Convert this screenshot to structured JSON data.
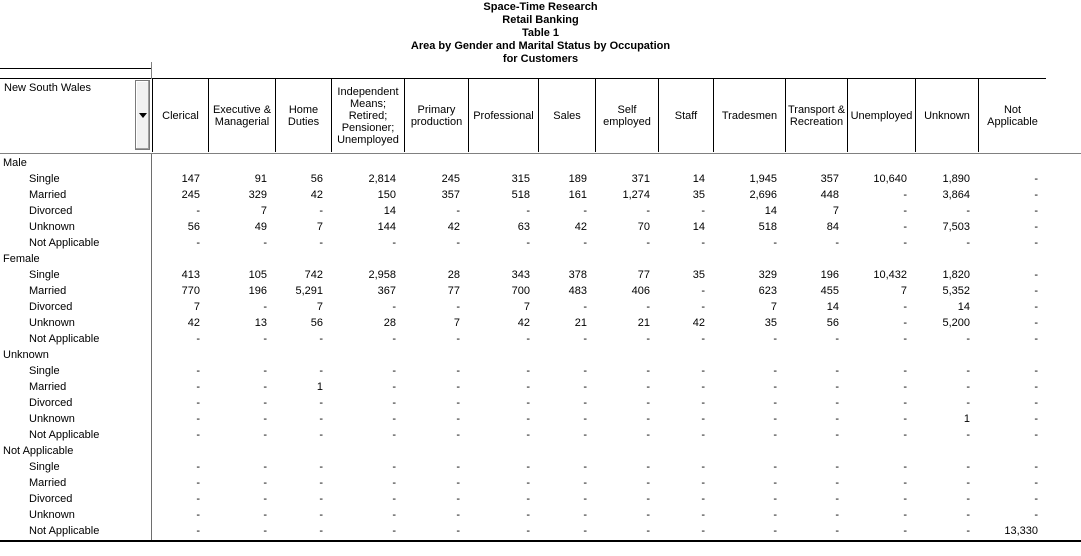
{
  "title_lines": [
    "Space-Time Research",
    "Retail Banking",
    "Table 1",
    "Area by Gender and Marital Status by Occupation",
    "for Customers"
  ],
  "table": {
    "area_selector": {
      "label": "New South Wales",
      "dropdown_icon": "down-triangle-icon"
    },
    "columns": [
      "Clerical",
      "Executive & Managerial",
      "Home Duties",
      "Independent Means; Retired; Pensioner; Unemployed",
      "Primary production",
      "Professional",
      "Sales",
      "Self employed",
      "Staff",
      "Tradesmen",
      "Transport & Recreation",
      "Unemployed",
      "Unknown",
      "Not Applicable"
    ],
    "groups": [
      {
        "label": "Male",
        "rows": [
          {
            "label": "Single",
            "values": [
              "147",
              "91",
              "56",
              "2,814",
              "245",
              "315",
              "189",
              "371",
              "14",
              "1,945",
              "357",
              "10,640",
              "1,890",
              "-"
            ]
          },
          {
            "label": "Married",
            "values": [
              "245",
              "329",
              "42",
              "150",
              "357",
              "518",
              "161",
              "1,274",
              "35",
              "2,696",
              "448",
              "-",
              "3,864",
              "-"
            ]
          },
          {
            "label": "Divorced",
            "values": [
              "-",
              "7",
              "-",
              "14",
              "-",
              "-",
              "-",
              "-",
              "-",
              "14",
              "7",
              "-",
              "-",
              "-"
            ]
          },
          {
            "label": "Unknown",
            "values": [
              "56",
              "49",
              "7",
              "144",
              "42",
              "63",
              "42",
              "70",
              "14",
              "518",
              "84",
              "-",
              "7,503",
              "-"
            ]
          },
          {
            "label": "Not Applicable",
            "values": [
              "-",
              "-",
              "-",
              "-",
              "-",
              "-",
              "-",
              "-",
              "-",
              "-",
              "-",
              "-",
              "-",
              "-"
            ]
          }
        ]
      },
      {
        "label": "Female",
        "rows": [
          {
            "label": "Single",
            "values": [
              "413",
              "105",
              "742",
              "2,958",
              "28",
              "343",
              "378",
              "77",
              "35",
              "329",
              "196",
              "10,432",
              "1,820",
              "-"
            ]
          },
          {
            "label": "Married",
            "values": [
              "770",
              "196",
              "5,291",
              "367",
              "77",
              "700",
              "483",
              "406",
              "-",
              "623",
              "455",
              "7",
              "5,352",
              "-"
            ]
          },
          {
            "label": "Divorced",
            "values": [
              "7",
              "-",
              "7",
              "-",
              "-",
              "7",
              "-",
              "-",
              "-",
              "7",
              "14",
              "-",
              "14",
              "-"
            ]
          },
          {
            "label": "Unknown",
            "values": [
              "42",
              "13",
              "56",
              "28",
              "7",
              "42",
              "21",
              "21",
              "42",
              "35",
              "56",
              "-",
              "5,200",
              "-"
            ]
          },
          {
            "label": "Not Applicable",
            "values": [
              "-",
              "-",
              "-",
              "-",
              "-",
              "-",
              "-",
              "-",
              "-",
              "-",
              "-",
              "-",
              "-",
              "-"
            ]
          }
        ]
      },
      {
        "label": "Unknown",
        "rows": [
          {
            "label": "Single",
            "values": [
              "-",
              "-",
              "-",
              "-",
              "-",
              "-",
              "-",
              "-",
              "-",
              "-",
              "-",
              "-",
              "-",
              "-"
            ]
          },
          {
            "label": "Married",
            "values": [
              "-",
              "-",
              "1",
              "-",
              "-",
              "-",
              "-",
              "-",
              "-",
              "-",
              "-",
              "-",
              "-",
              "-"
            ]
          },
          {
            "label": "Divorced",
            "values": [
              "-",
              "-",
              "-",
              "-",
              "-",
              "-",
              "-",
              "-",
              "-",
              "-",
              "-",
              "-",
              "-",
              "-"
            ]
          },
          {
            "label": "Unknown",
            "values": [
              "-",
              "-",
              "-",
              "-",
              "-",
              "-",
              "-",
              "-",
              "-",
              "-",
              "-",
              "-",
              "1",
              "-"
            ]
          },
          {
            "label": "Not Applicable",
            "values": [
              "-",
              "-",
              "-",
              "-",
              "-",
              "-",
              "-",
              "-",
              "-",
              "-",
              "-",
              "-",
              "-",
              "-"
            ]
          }
        ]
      },
      {
        "label": "Not Applicable",
        "rows": [
          {
            "label": "Single",
            "values": [
              "-",
              "-",
              "-",
              "-",
              "-",
              "-",
              "-",
              "-",
              "-",
              "-",
              "-",
              "-",
              "-",
              "-"
            ]
          },
          {
            "label": "Married",
            "values": [
              "-",
              "-",
              "-",
              "-",
              "-",
              "-",
              "-",
              "-",
              "-",
              "-",
              "-",
              "-",
              "-",
              "-"
            ]
          },
          {
            "label": "Divorced",
            "values": [
              "-",
              "-",
              "-",
              "-",
              "-",
              "-",
              "-",
              "-",
              "-",
              "-",
              "-",
              "-",
              "-",
              "-"
            ]
          },
          {
            "label": "Unknown",
            "values": [
              "-",
              "-",
              "-",
              "-",
              "-",
              "-",
              "-",
              "-",
              "-",
              "-",
              "-",
              "-",
              "-",
              "-"
            ]
          },
          {
            "label": "Not Applicable",
            "values": [
              "-",
              "-",
              "-",
              "-",
              "-",
              "-",
              "-",
              "-",
              "-",
              "-",
              "-",
              "-",
              "-",
              "13,330"
            ]
          }
        ]
      }
    ]
  }
}
